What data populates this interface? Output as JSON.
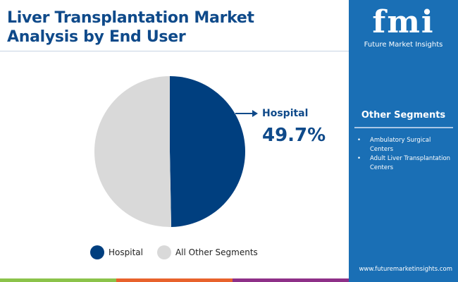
{
  "title": "Liver Transplantation Market Analysis by End User",
  "brand": {
    "logo_mark": "fmi",
    "name": "Future Market Insights",
    "url": "www.futuremarketinsights.com"
  },
  "other_segments": {
    "title": "Other Segments",
    "items": [
      "Ambulatory Surgical Centers",
      "Adult Liver Transplantation Centers"
    ]
  },
  "chart_data": {
    "type": "pie",
    "categories": [
      "Hospital",
      "All Other Segments"
    ],
    "values": [
      49.7,
      50.3
    ],
    "colors": [
      "#003f7f",
      "#d9d9d9"
    ],
    "callout": {
      "label": "Hospital",
      "value": "49.7%"
    },
    "legend_position": "bottom"
  },
  "colors": {
    "accent": "#0f4a8a",
    "panel": "#1a6fb5",
    "bottom_bar": [
      "#8bc34a",
      "#e8622c",
      "#8e3088",
      "#1a6fb5"
    ]
  }
}
